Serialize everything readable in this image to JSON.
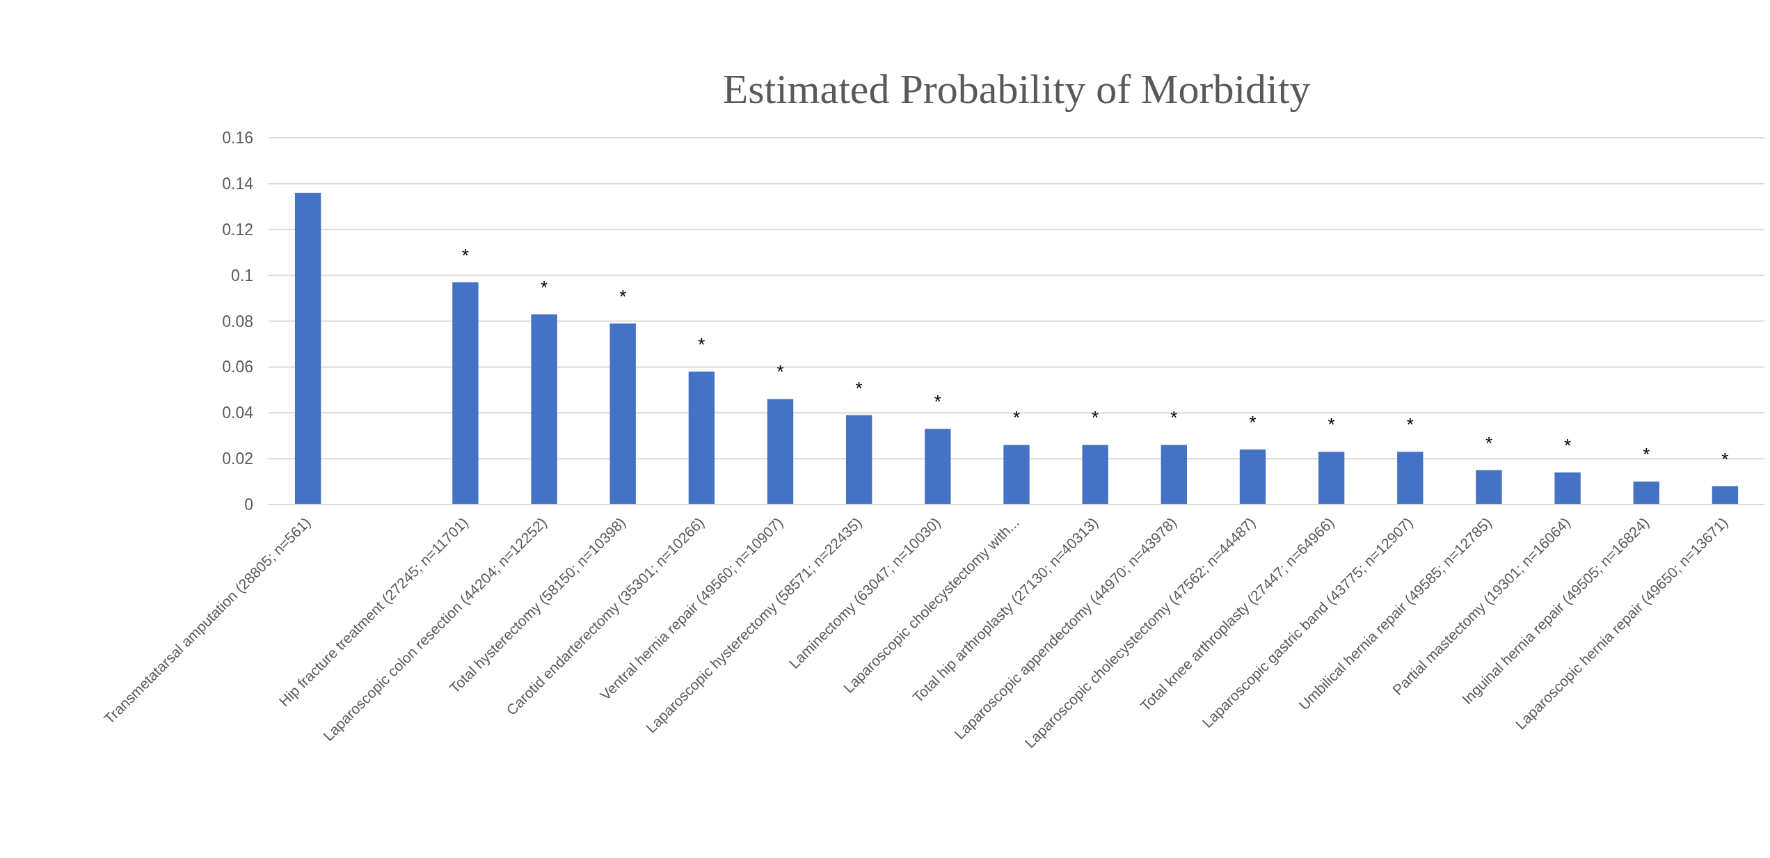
{
  "chart_data": {
    "type": "bar",
    "title": "Estimated Probability of Morbidity",
    "categories": [
      "Transmetatarsal amputation (28805; n=561)",
      null,
      "Hip fracture treatment (27245; n=11701)",
      "Laparoscopic colon resection (44204; n=12252)",
      "Total hysterectomy (58150; n=10398)",
      "Carotid endarterectomy (35301; n=10266)",
      "Ventral hernia repair (49560; n=10907)",
      "Laparoscopic hysterectomy (58571; n=22435)",
      "Laminectomy (63047; n=10030)",
      "Laparoscopic cholecystectomy with...",
      "Total hip arthroplasty (27130; n=40313)",
      "Laparoscopic appendectomy (44970; n=43978)",
      "Laparoscopic cholecystectomy (47562; n=44487)",
      "Total knee arthroplasty (27447; n=64966)",
      "Laparoscopic gastric band (43775; n=12907)",
      "Umbilical hernia repair (49585; n=12785)",
      "Partial mastectomy (19301; n=16064)",
      "Inguinal hernia repair (49505; n=16824)",
      "Laparoscopic hernia repair (49650; n=13671)"
    ],
    "values": [
      0.136,
      null,
      0.097,
      0.083,
      0.079,
      0.058,
      0.046,
      0.039,
      0.033,
      0.026,
      0.026,
      0.026,
      0.024,
      0.023,
      0.023,
      0.015,
      0.014,
      0.01,
      0.008
    ],
    "value_labels": [
      null,
      null,
      "*",
      "*",
      "*",
      "*",
      "*",
      "*",
      "*",
      "*",
      "*",
      "*",
      "*",
      "*",
      "*",
      "*",
      "*",
      "*",
      "*"
    ],
    "color": "#4472c4",
    "ylim": [
      0,
      0.16
    ],
    "yticks": [
      0,
      0.02,
      0.04,
      0.06,
      0.08,
      0.1,
      0.12,
      0.14,
      0.16
    ],
    "grid": "y"
  }
}
